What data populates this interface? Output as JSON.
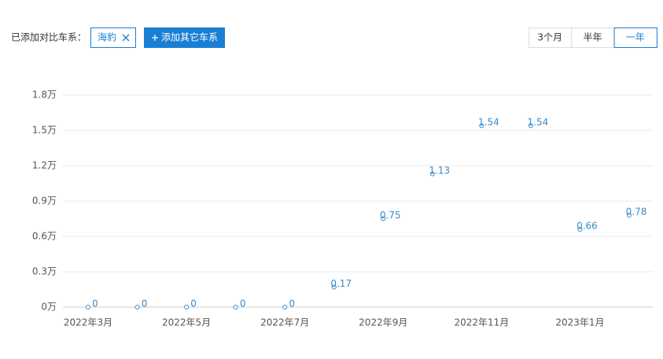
{
  "controls": {
    "compare_label": "已添加对比车系：",
    "tags": [
      "海豹"
    ],
    "add_button": "添加其它车系",
    "ranges": [
      "3个月",
      "半年",
      "一年"
    ],
    "active_range": 2
  },
  "chart_data": {
    "type": "line",
    "categories": [
      "2022年3月",
      null,
      "2022年5月",
      null,
      "2022年7月",
      null,
      "2022年9月",
      null,
      "2022年11月",
      null,
      "2023年1月",
      null
    ],
    "values": [
      0,
      0,
      0,
      0,
      0,
      0.17,
      0.75,
      1.13,
      1.54,
      1.54,
      0.66,
      0.78
    ],
    "color": "#3a8ac8",
    "ylim": [
      0,
      1.8
    ],
    "yticks": [
      {
        "value": 0,
        "label": "0万"
      },
      {
        "value": 0.3,
        "label": "0.3万"
      },
      {
        "value": 0.6,
        "label": "0.6万"
      },
      {
        "value": 0.9,
        "label": "0.9万"
      },
      {
        "value": 1.2,
        "label": "1.2万"
      },
      {
        "value": 1.5,
        "label": "1.5万"
      },
      {
        "value": 1.8,
        "label": "1.8万"
      }
    ],
    "grid": true
  }
}
